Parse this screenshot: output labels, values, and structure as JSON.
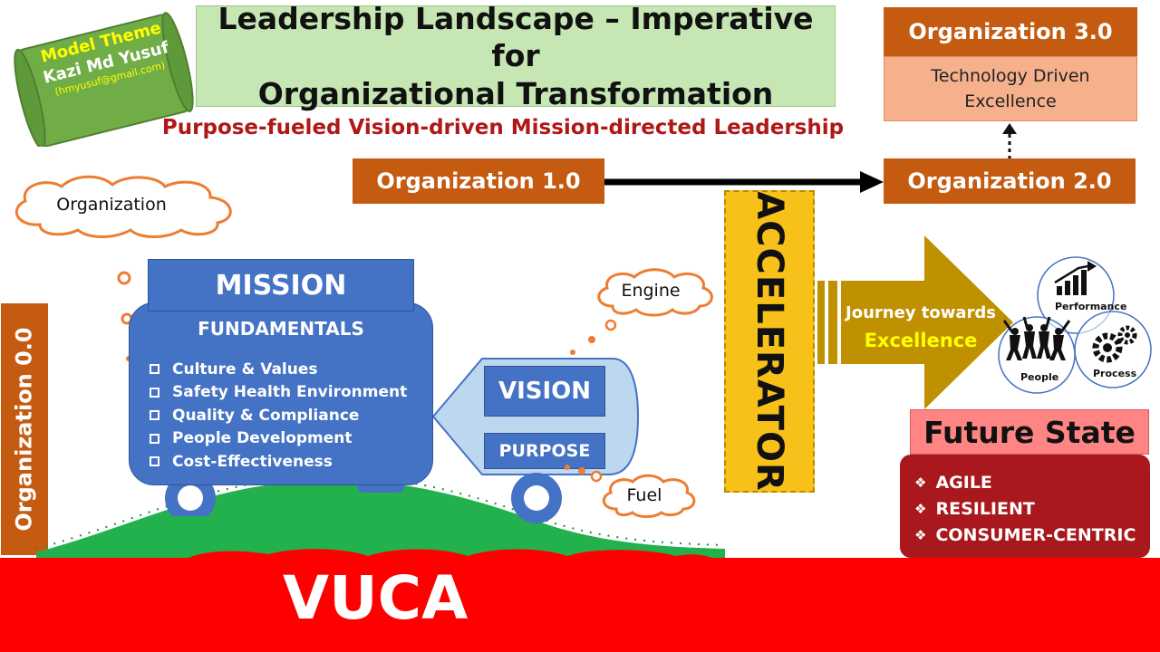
{
  "model_theme": {
    "label": "Model Theme",
    "author": "Kazi Md Yusuf",
    "email": "(hmyusuf@gmail.com)"
  },
  "title": "Leadership Landscape – Imperative for Organizational Transformation",
  "title_line1": "Leadership Landscape – Imperative for",
  "title_line2": "Organizational Transformation",
  "subtitle": "Purpose-fueled Vision-driven Mission-directed Leadership",
  "organizations": {
    "org0": "Organization 0.0",
    "org1": "Organization 1.0",
    "org2": "Organization 2.0",
    "org3": "Organization 3.0",
    "org3_desc_line1": "Technology Driven",
    "org3_desc_line2": "Excellence"
  },
  "clouds": {
    "organization": "Organization",
    "engine": "Engine",
    "fuel": "Fuel"
  },
  "vehicle": {
    "mission": "MISSION",
    "fundamentals_title": "FUNDAMENTALS",
    "fundamentals": [
      "Culture  & Values",
      "Safety Health Environment",
      "Quality & Compliance",
      "People Development",
      "Cost-Effectiveness"
    ],
    "vision": "VISION",
    "purpose": "PURPOSE"
  },
  "accelerator": "ACCELERATOR",
  "journey": {
    "line1": "Journey towards",
    "line2": "Excellence"
  },
  "venn": {
    "performance": "Performance",
    "people": "People",
    "process": "Process"
  },
  "future_state": {
    "title": "Future State",
    "items": [
      "AGILE",
      "RESILIENT",
      "CONSUMER-CENTRIC"
    ]
  },
  "vuca": "VUCA",
  "colors": {
    "org_orange": "#c55a11",
    "mission_blue": "#4472c4",
    "accelerator_yellow": "#f7c11a",
    "arrow_gold": "#bf9000",
    "future_red": "#a8181c",
    "vuca_red": "#ff0000",
    "road_green": "#22b14c",
    "subtitle_red": "#b01818"
  }
}
